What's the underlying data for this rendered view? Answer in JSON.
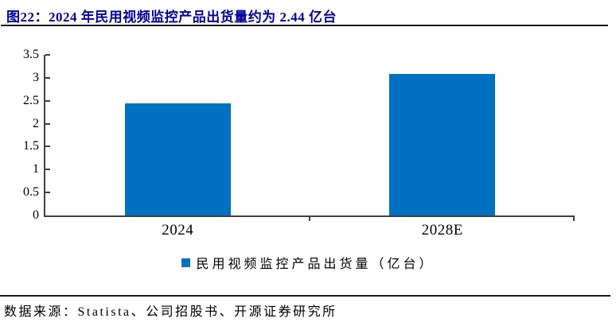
{
  "header": {
    "figure_title": "图22：2024 年民用视频监控产品出货量约为 2.44 亿台"
  },
  "chart_data": {
    "type": "bar",
    "title": "2024 年民用视频监控产品出货量约为 2.44 亿台",
    "categories": [
      "2024",
      "2028E"
    ],
    "series": [
      {
        "name": "民用视频监控产品出货量（亿台）",
        "values": [
          2.44,
          3.08
        ]
      }
    ],
    "xlabel": "",
    "ylabel": "",
    "ylim": [
      0,
      3.5
    ],
    "yticks": [
      0,
      0.5,
      1,
      1.5,
      2,
      2.5,
      3,
      3.5
    ],
    "grid": false,
    "legend_position": "bottom",
    "bar_color": "#0070C0"
  },
  "legend": {
    "label": "民用视频监控产品出货量（亿台）",
    "swatch_color": "#0070C0"
  },
  "footer": {
    "source_text": "数据来源：Statista、公司招股书、开源证券研究所"
  },
  "colors": {
    "title_text": "#00009B",
    "bar": "#0070C0",
    "rule": "#1A1A1A",
    "axis": "#404040"
  }
}
